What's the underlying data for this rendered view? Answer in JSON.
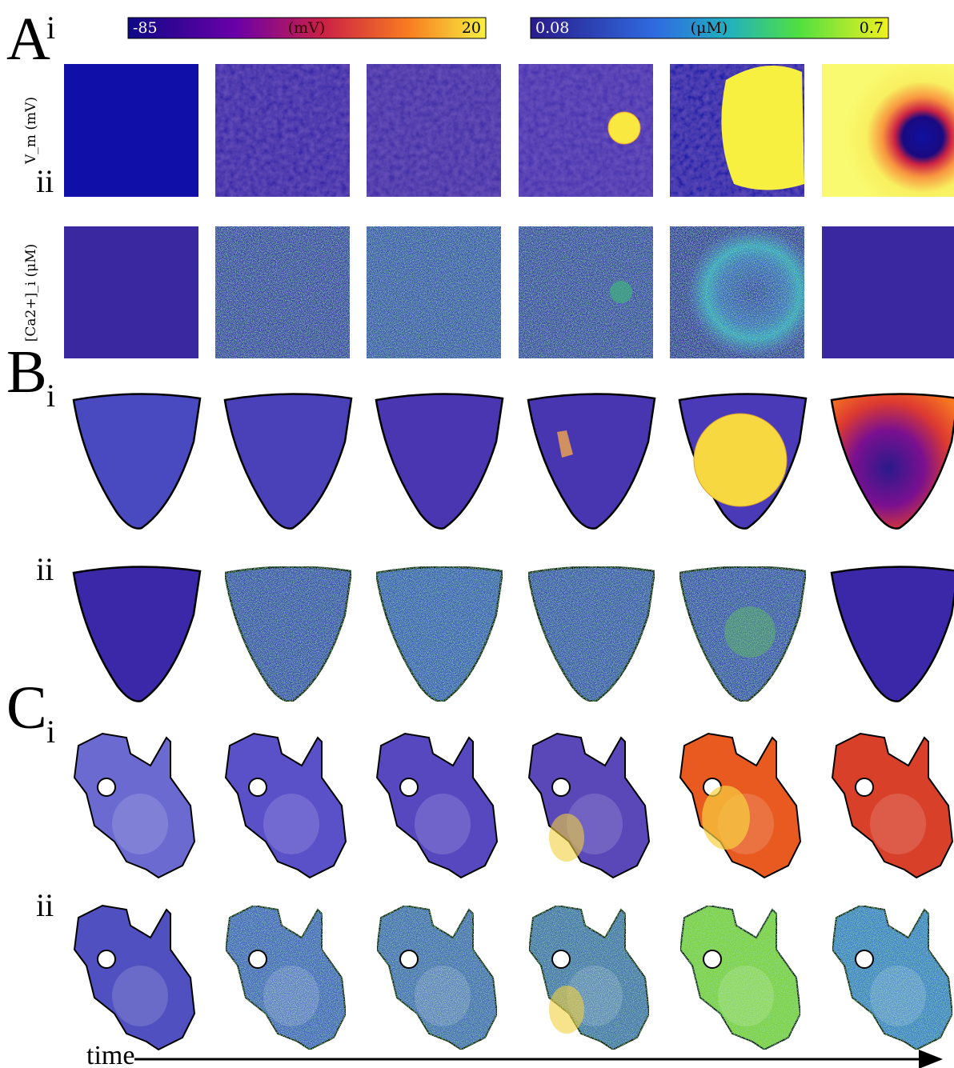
{
  "colorbars": [
    {
      "min": "-85",
      "unit": "(mV)",
      "max": "20"
    },
    {
      "min": "0.08",
      "unit": "(μM)",
      "max": "0.7"
    }
  ],
  "panels": [
    {
      "letter": "A",
      "rows": [
        {
          "label": "i",
          "ylabel": "V_m (mV)"
        },
        {
          "label": "ii",
          "ylabel": "[Ca2+]_i (μM)"
        }
      ]
    },
    {
      "letter": "B",
      "rows": [
        {
          "label": "i"
        },
        {
          "label": "ii"
        }
      ]
    },
    {
      "letter": "C",
      "rows": [
        {
          "label": "i"
        },
        {
          "label": "ii"
        }
      ]
    }
  ],
  "axis": {
    "label": "time"
  }
}
